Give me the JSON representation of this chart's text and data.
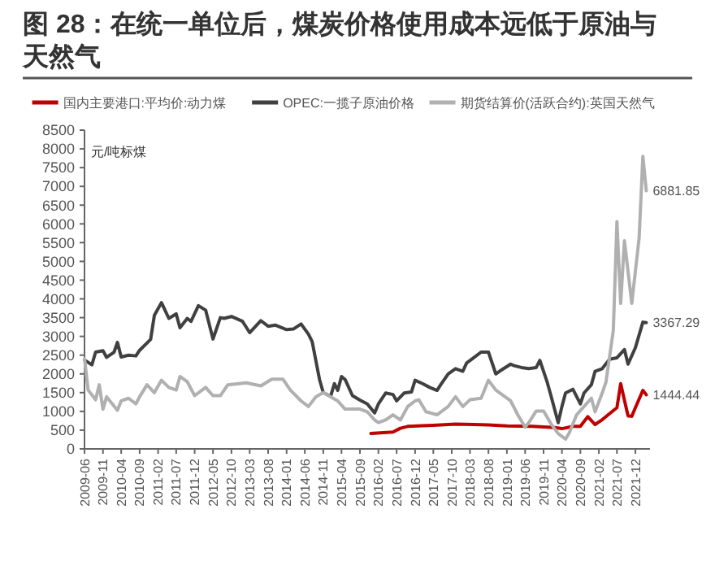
{
  "chart_data": {
    "type": "line",
    "title": "图 28：在统一单位后，煤炭价格使用成本远低于原油与天然气",
    "ylabel": "元/吨标煤",
    "legend": "top",
    "grid": false,
    "marker": "none",
    "line_style": "solid",
    "xlim": [
      "2009-06",
      "2022-04"
    ],
    "xticks": [
      "2009-06",
      "2009-11",
      "2010-04",
      "2010-09",
      "2011-02",
      "2011-07",
      "2011-12",
      "2012-05",
      "2012-10",
      "2013-03",
      "2013-08",
      "2014-01",
      "2014-06",
      "2014-11",
      "2015-04",
      "2015-09",
      "2016-02",
      "2016-07",
      "2016-12",
      "2017-05",
      "2017-10",
      "2018-03",
      "2018-08",
      "2019-01",
      "2019-06",
      "2019-11",
      "2020-04",
      "2020-09",
      "2021-02",
      "2021-07",
      "2021-12"
    ],
    "ylim": [
      0,
      8500
    ],
    "yticks": [
      0,
      500,
      1000,
      1500,
      2000,
      2500,
      3000,
      3500,
      4000,
      4500,
      5000,
      5500,
      6000,
      6500,
      7000,
      7500,
      8000,
      8500
    ],
    "series": [
      {
        "name": "国内主要港口:平均价:动力煤",
        "color": "#c00000",
        "x": [
          "2015-12",
          "2016-06",
          "2016-08",
          "2016-10",
          "2017-02",
          "2017-05",
          "2017-09",
          "2017-11",
          "2018-04",
          "2018-08",
          "2019-01",
          "2019-08",
          "2020-02",
          "2020-04",
          "2020-07",
          "2020-09",
          "2020-11",
          "2021-01",
          "2021-03",
          "2021-07",
          "2021-08",
          "2021-09",
          "2021-10",
          "2021-11",
          "2021-12",
          "2022-02",
          "2022-03"
        ],
        "values": [
          410,
          450,
          550,
          600,
          620,
          630,
          650,
          660,
          650,
          640,
          610,
          600,
          570,
          540,
          600,
          600,
          860,
          650,
          780,
          1100,
          1740,
          1300,
          880,
          870,
          1100,
          1560,
          1444.44
        ]
      },
      {
        "name": "OPEC:一揽子原油价格",
        "color": "#404040",
        "x": [
          "2009-06",
          "2009-08",
          "2009-09",
          "2009-11",
          "2009-12",
          "2010-02",
          "2010-03",
          "2010-04",
          "2010-06",
          "2010-08",
          "2010-09",
          "2010-12",
          "2011-01",
          "2011-03",
          "2011-05",
          "2011-07",
          "2011-08",
          "2011-10",
          "2011-11",
          "2012-01",
          "2012-03",
          "2012-05",
          "2012-07",
          "2012-08",
          "2012-10",
          "2013-01",
          "2013-03",
          "2013-06",
          "2013-08",
          "2013-10",
          "2014-01",
          "2014-03",
          "2014-05",
          "2014-07",
          "2014-08",
          "2014-10",
          "2014-11",
          "2015-01",
          "2015-02",
          "2015-03",
          "2015-04",
          "2015-05",
          "2015-07",
          "2015-09",
          "2015-11",
          "2016-01",
          "2016-02",
          "2016-04",
          "2016-06",
          "2016-07",
          "2016-09",
          "2016-11",
          "2016-12",
          "2017-02",
          "2017-04",
          "2017-06",
          "2017-07",
          "2017-09",
          "2017-11",
          "2018-01",
          "2018-02",
          "2018-04",
          "2018-06",
          "2018-08",
          "2018-10",
          "2018-11",
          "2019-02",
          "2019-03",
          "2019-05",
          "2019-07",
          "2019-09",
          "2019-10",
          "2019-12",
          "2020-01",
          "2020-03",
          "2020-04",
          "2020-05",
          "2020-07",
          "2020-09",
          "2020-10",
          "2020-12",
          "2021-01",
          "2021-03",
          "2021-05",
          "2021-07",
          "2021-09",
          "2021-10",
          "2021-12",
          "2022-02",
          "2022-03"
        ],
        "values": [
          2370,
          2240,
          2580,
          2620,
          2440,
          2580,
          2840,
          2450,
          2500,
          2480,
          2630,
          2920,
          3560,
          3900,
          3480,
          3600,
          3230,
          3480,
          3400,
          3820,
          3700,
          2930,
          3500,
          3480,
          3530,
          3400,
          3100,
          3420,
          3270,
          3300,
          3180,
          3200,
          3330,
          3060,
          2860,
          1850,
          1500,
          1400,
          1740,
          1560,
          1930,
          1850,
          1420,
          1300,
          1200,
          960,
          1200,
          1490,
          1450,
          1280,
          1490,
          1520,
          1830,
          1740,
          1640,
          1560,
          1710,
          2000,
          2140,
          2070,
          2290,
          2430,
          2580,
          2580,
          2000,
          2070,
          2260,
          2220,
          2170,
          2140,
          2170,
          2360,
          1780,
          1420,
          700,
          1130,
          1490,
          1590,
          1200,
          1490,
          1710,
          2070,
          2140,
          2390,
          2430,
          2650,
          2260,
          2700,
          3380,
          3367.29
        ]
      },
      {
        "name": "期货结算价(活跃合约):英国天然气",
        "color": "#b0b0b0",
        "x": [
          "2009-06",
          "2009-07",
          "2009-09",
          "2009-10",
          "2009-11",
          "2009-12",
          "2010-03",
          "2010-04",
          "2010-06",
          "2010-08",
          "2010-09",
          "2010-11",
          "2011-01",
          "2011-03",
          "2011-05",
          "2011-07",
          "2011-08",
          "2011-10",
          "2011-12",
          "2012-03",
          "2012-05",
          "2012-07",
          "2012-09",
          "2013-02",
          "2013-06",
          "2013-09",
          "2013-12",
          "2014-02",
          "2014-05",
          "2014-07",
          "2014-09",
          "2014-11",
          "2015-03",
          "2015-05",
          "2015-09",
          "2015-11",
          "2016-01",
          "2016-02",
          "2016-04",
          "2016-06",
          "2016-08",
          "2016-10",
          "2016-12",
          "2017-01",
          "2017-03",
          "2017-06",
          "2017-09",
          "2017-11",
          "2018-01",
          "2018-03",
          "2018-06",
          "2018-08",
          "2018-10",
          "2019-02",
          "2019-04",
          "2019-06",
          "2019-07",
          "2019-09",
          "2019-11",
          "2020-01",
          "2020-03",
          "2020-05",
          "2020-06",
          "2020-08",
          "2020-10",
          "2020-12",
          "2021-01",
          "2021-03",
          "2021-04",
          "2021-06",
          "2021-07",
          "2021-08",
          "2021-09",
          "2021-11",
          "2022-01",
          "2022-02",
          "2022-03"
        ],
        "values": [
          2400,
          1570,
          1310,
          1710,
          1060,
          1390,
          1030,
          1280,
          1350,
          1200,
          1390,
          1710,
          1500,
          1830,
          1640,
          1570,
          1930,
          1790,
          1420,
          1640,
          1420,
          1420,
          1710,
          1760,
          1680,
          1860,
          1860,
          1570,
          1280,
          1130,
          1390,
          1500,
          1280,
          1060,
          1060,
          990,
          770,
          700,
          770,
          910,
          770,
          1130,
          1280,
          1310,
          990,
          910,
          1130,
          1390,
          1130,
          1310,
          1350,
          1830,
          1570,
          1280,
          910,
          580,
          700,
          1010,
          1010,
          670,
          410,
          260,
          430,
          910,
          1130,
          1350,
          990,
          1490,
          1780,
          3160,
          6060,
          3880,
          5550,
          3880,
          5630,
          7800,
          6881.85
        ]
      }
    ],
    "annotations": [
      {
        "text": "6881.85",
        "x": "2022-03",
        "y": 6881.85
      },
      {
        "text": "3367.29",
        "x": "2022-03",
        "y": 3367.29
      },
      {
        "text": "1444.44",
        "x": "2022-03",
        "y": 1444.44
      }
    ]
  }
}
